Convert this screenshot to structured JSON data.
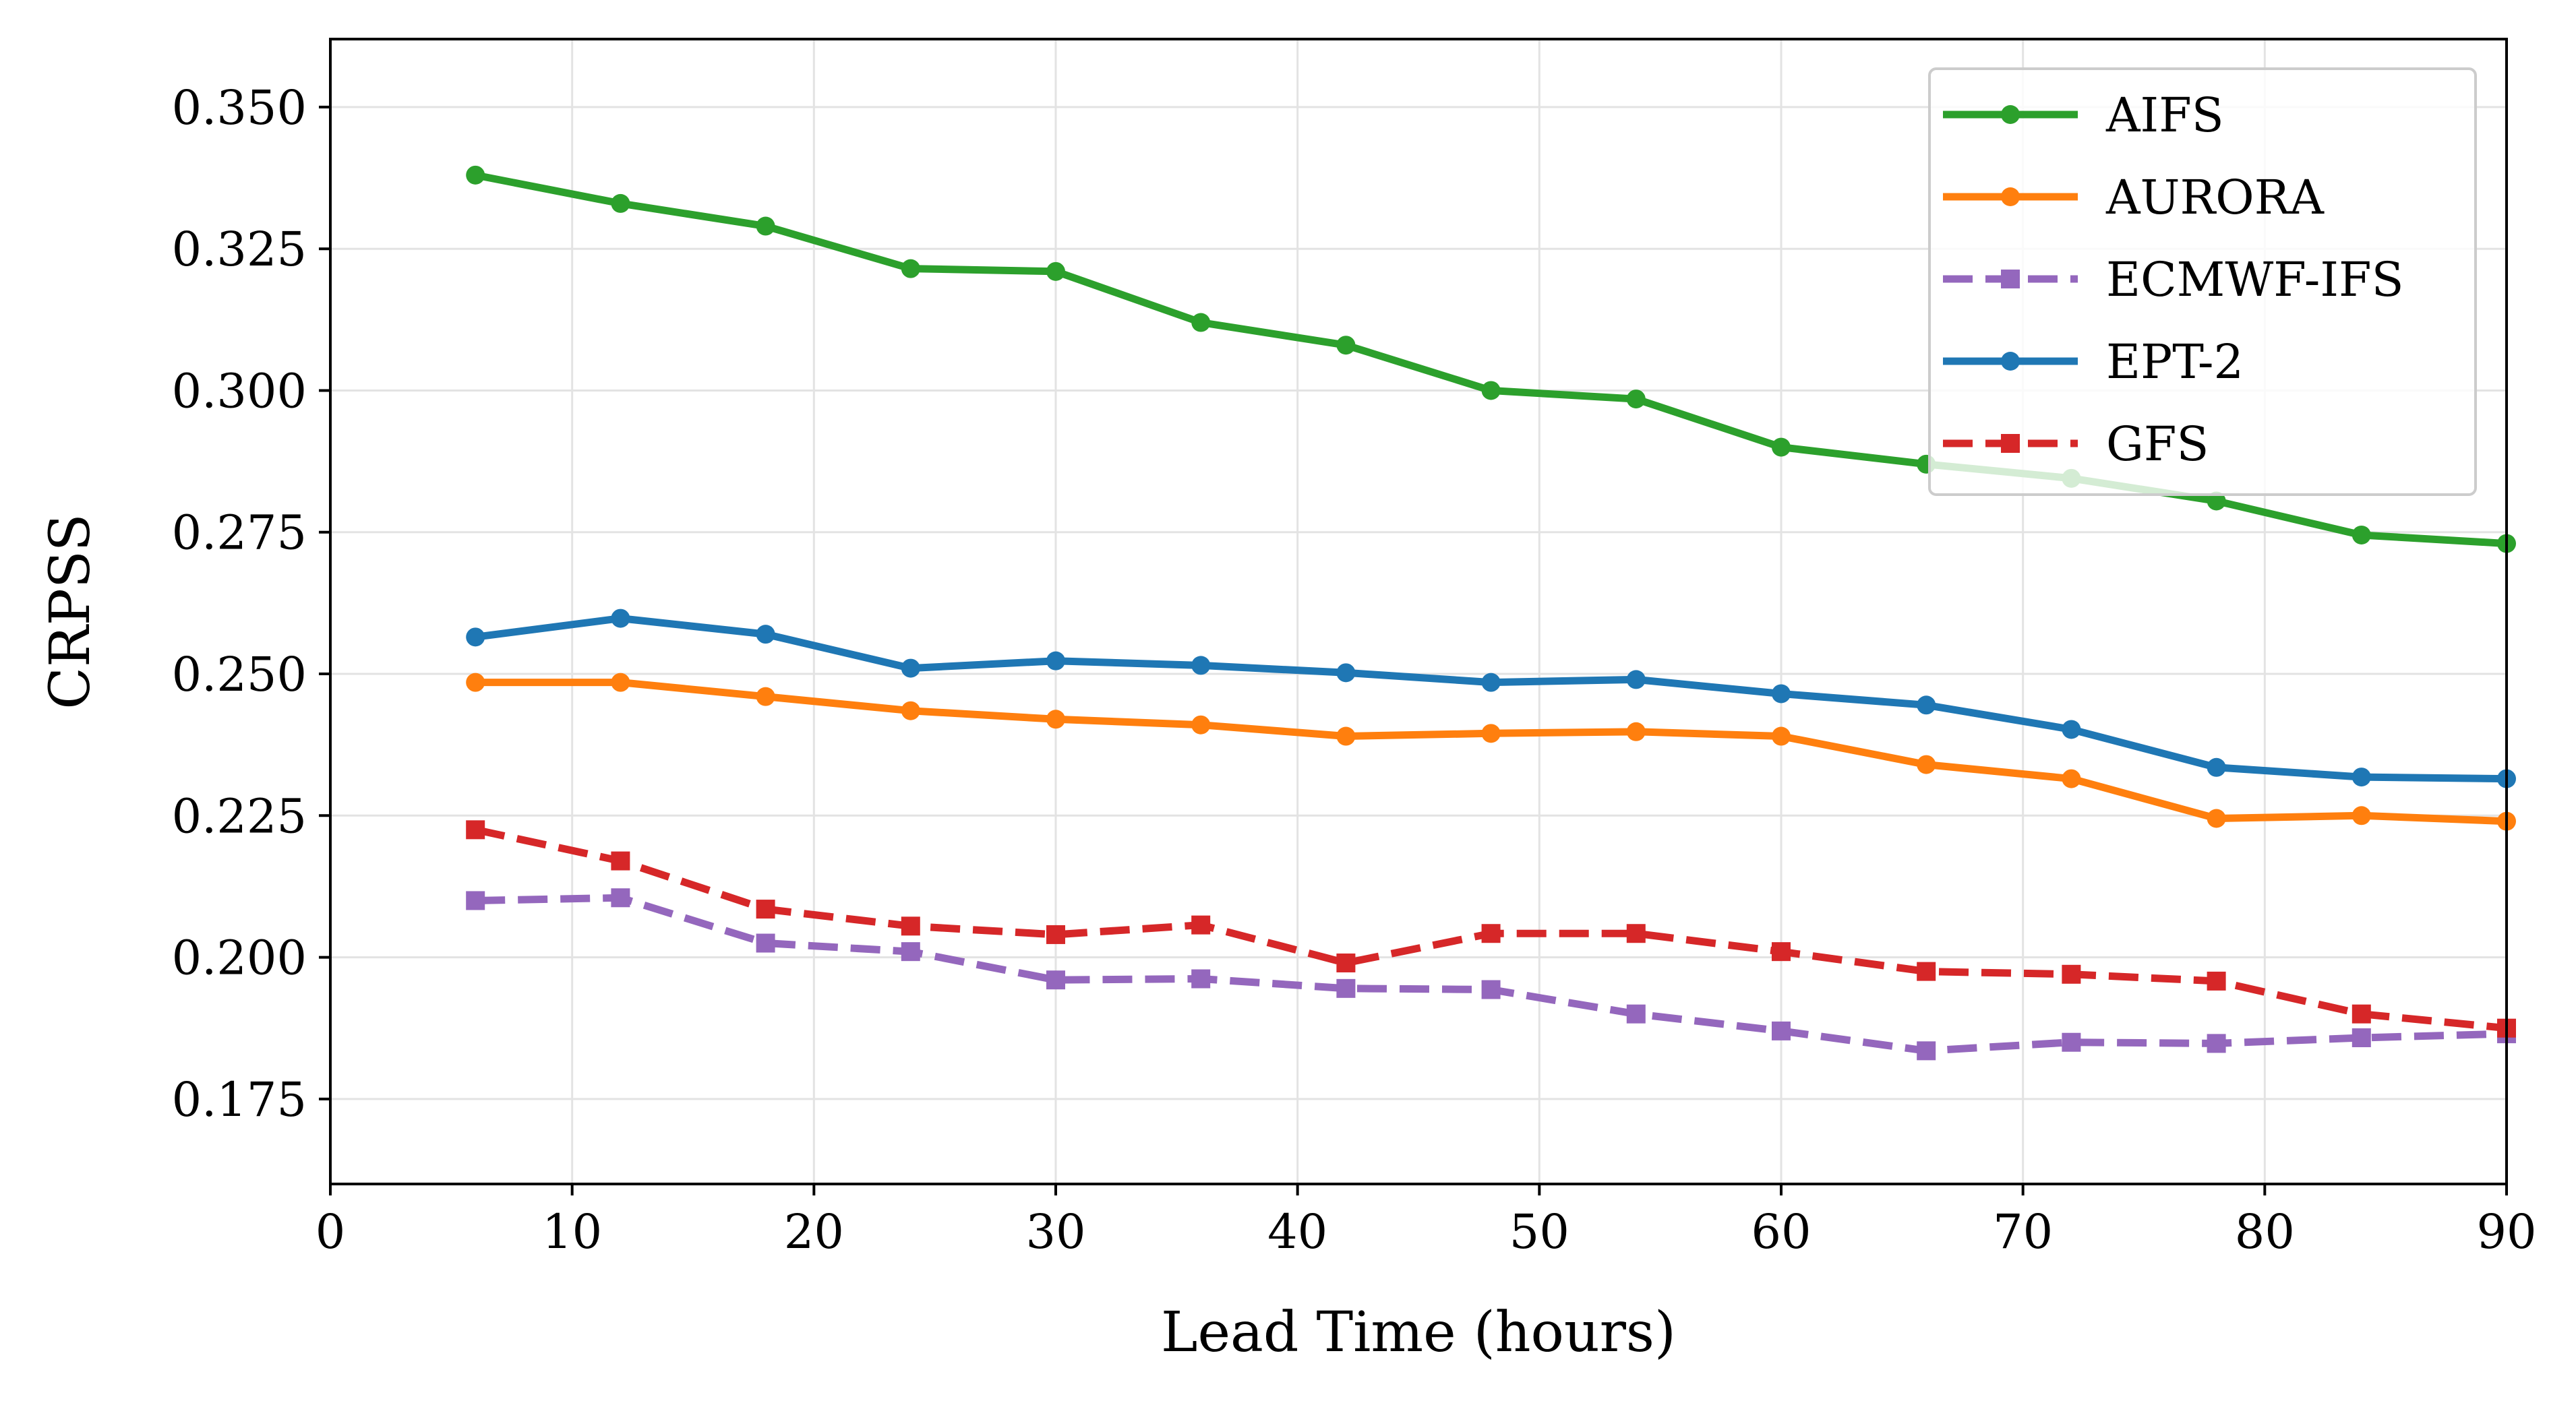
{
  "chart_data": {
    "type": "line",
    "title": "",
    "xlabel": "Lead Time (hours)",
    "ylabel": "CRPSS",
    "xlim": [
      0,
      90
    ],
    "ylim": [
      0.16,
      0.362
    ],
    "xticks": [
      0,
      10,
      20,
      30,
      40,
      50,
      60,
      70,
      80,
      90
    ],
    "yticks": [
      0.175,
      0.2,
      0.225,
      0.25,
      0.275,
      0.3,
      0.325,
      0.35
    ],
    "xtick_labels": [
      "0",
      "10",
      "20",
      "30",
      "40",
      "50",
      "60",
      "70",
      "80",
      "90"
    ],
    "ytick_labels": [
      "0.175",
      "0.200",
      "0.225",
      "0.250",
      "0.275",
      "0.300",
      "0.325",
      "0.350"
    ],
    "grid": true,
    "legend_position": "top-right",
    "x": [
      6,
      12,
      18,
      24,
      30,
      36,
      42,
      48,
      54,
      60,
      66,
      72,
      78,
      84,
      90
    ],
    "series": [
      {
        "name": "AIFS",
        "color": "#2ca02c",
        "linestyle": "solid",
        "marker": "circle",
        "values": [
          0.338,
          0.333,
          0.329,
          0.3215,
          0.321,
          0.312,
          0.308,
          0.3,
          0.2985,
          0.29,
          0.287,
          0.2845,
          0.2805,
          0.2745,
          0.273
        ]
      },
      {
        "name": "AURORA",
        "color": "#ff7f0e",
        "linestyle": "solid",
        "marker": "circle",
        "values": [
          0.2485,
          0.2485,
          0.246,
          0.2435,
          0.242,
          0.241,
          0.239,
          0.2395,
          0.2398,
          0.239,
          0.234,
          0.2315,
          0.2245,
          0.225,
          0.224
        ]
      },
      {
        "name": "ECMWF-IFS",
        "color": "#9467bd",
        "linestyle": "dashed",
        "marker": "square",
        "values": [
          0.21,
          0.2105,
          0.2025,
          0.201,
          0.196,
          0.1962,
          0.1945,
          0.1943,
          0.19,
          0.187,
          0.1835,
          0.185,
          0.1848,
          0.1858,
          0.1865
        ]
      },
      {
        "name": "EPT-2",
        "color": "#1f77b4",
        "linestyle": "solid",
        "marker": "circle",
        "values": [
          0.2565,
          0.2598,
          0.257,
          0.251,
          0.2523,
          0.2515,
          0.2502,
          0.2485,
          0.249,
          0.2465,
          0.2445,
          0.2402,
          0.2335,
          0.2318,
          0.2315
        ]
      },
      {
        "name": "GFS",
        "color": "#d62728",
        "linestyle": "dashed",
        "marker": "square",
        "values": [
          0.2225,
          0.217,
          0.2085,
          0.2055,
          0.204,
          0.2057,
          0.199,
          0.2042,
          0.2042,
          0.201,
          0.1975,
          0.197,
          0.1958,
          0.19,
          0.1875
        ]
      }
    ]
  }
}
